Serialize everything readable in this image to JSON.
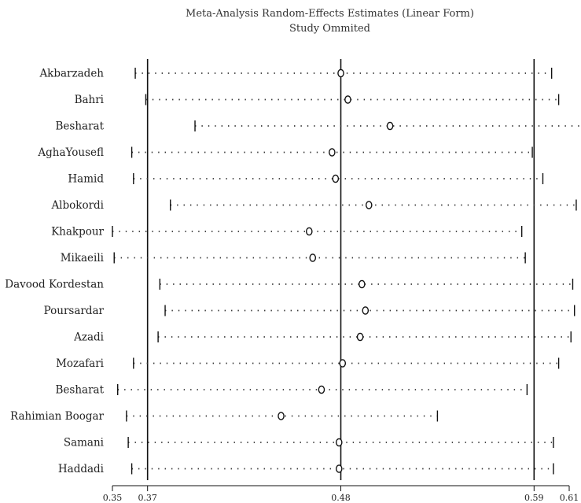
{
  "chart_data": {
    "type": "forest",
    "title": "Meta-Analysis Random-Effects Estimates (Linear Form)",
    "subtitle": "Study Ommited",
    "x_ticks": [
      0.35,
      0.37,
      0.48,
      0.59,
      0.61
    ],
    "x_tick_labels": [
      "0.35",
      "0.37",
      "0.48",
      "0.59",
      "0.61"
    ],
    "xlim": [
      0.35,
      0.61
    ],
    "reference_lines": [
      0.37,
      0.48,
      0.59
    ],
    "studies": [
      {
        "name": "Akbarzadeh",
        "estimate": 0.48,
        "lower": 0.363,
        "upper": 0.6
      },
      {
        "name": "Bahri",
        "estimate": 0.484,
        "lower": 0.369,
        "upper": 0.604
      },
      {
        "name": "Besharat",
        "estimate": 0.508,
        "lower": 0.397,
        "upper": 0.621
      },
      {
        "name": "AghaYousefl",
        "estimate": 0.475,
        "lower": 0.361,
        "upper": 0.589
      },
      {
        "name": "Hamid",
        "estimate": 0.477,
        "lower": 0.362,
        "upper": 0.595
      },
      {
        "name": "Albokordi",
        "estimate": 0.496,
        "lower": 0.383,
        "upper": 0.614
      },
      {
        "name": "Khakpour",
        "estimate": 0.462,
        "lower": 0.35,
        "upper": 0.583
      },
      {
        "name": "Mikaeili",
        "estimate": 0.464,
        "lower": 0.351,
        "upper": 0.585
      },
      {
        "name": "Davood Kordestan",
        "estimate": 0.492,
        "lower": 0.377,
        "upper": 0.612
      },
      {
        "name": "Poursardar",
        "estimate": 0.494,
        "lower": 0.38,
        "upper": 0.613
      },
      {
        "name": "Azadi",
        "estimate": 0.491,
        "lower": 0.376,
        "upper": 0.611
      },
      {
        "name": "Mozafari",
        "estimate": 0.481,
        "lower": 0.362,
        "upper": 0.604
      },
      {
        "name": "Besharat",
        "estimate": 0.469,
        "lower": 0.353,
        "upper": 0.586
      },
      {
        "name": "Rahimian Boogar",
        "estimate": 0.446,
        "lower": 0.358,
        "upper": 0.535
      },
      {
        "name": "Samani",
        "estimate": 0.479,
        "lower": 0.359,
        "upper": 0.601
      },
      {
        "name": "Haddadi",
        "estimate": 0.479,
        "lower": 0.361,
        "upper": 0.601
      }
    ]
  }
}
